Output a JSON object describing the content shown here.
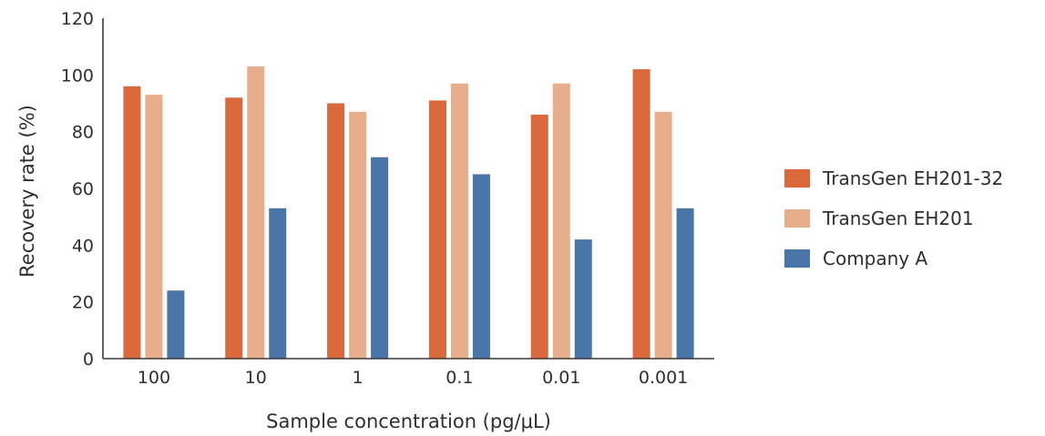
{
  "chart_data": {
    "type": "bar",
    "title": "",
    "xlabel": "Sample concentration (pg/μL)",
    "ylabel": "Recovery rate (%)",
    "categories": [
      "100",
      "10",
      "1",
      "0.1",
      "0.01",
      "0.001"
    ],
    "series": [
      {
        "name": "TransGen EH201-32",
        "color": "#d9683a",
        "values": [
          96,
          92,
          90,
          91,
          86,
          102
        ]
      },
      {
        "name": "TransGen EH201",
        "color": "#e8ad8a",
        "values": [
          93,
          103,
          87,
          97,
          97,
          87
        ]
      },
      {
        "name": "Company A",
        "color": "#4a75a8",
        "values": [
          24,
          53,
          71,
          65,
          42,
          53
        ]
      }
    ],
    "ylim": [
      0,
      120
    ],
    "yticks": [
      0,
      20,
      40,
      60,
      80,
      100,
      120
    ],
    "grid": false,
    "legend_position": "right"
  }
}
